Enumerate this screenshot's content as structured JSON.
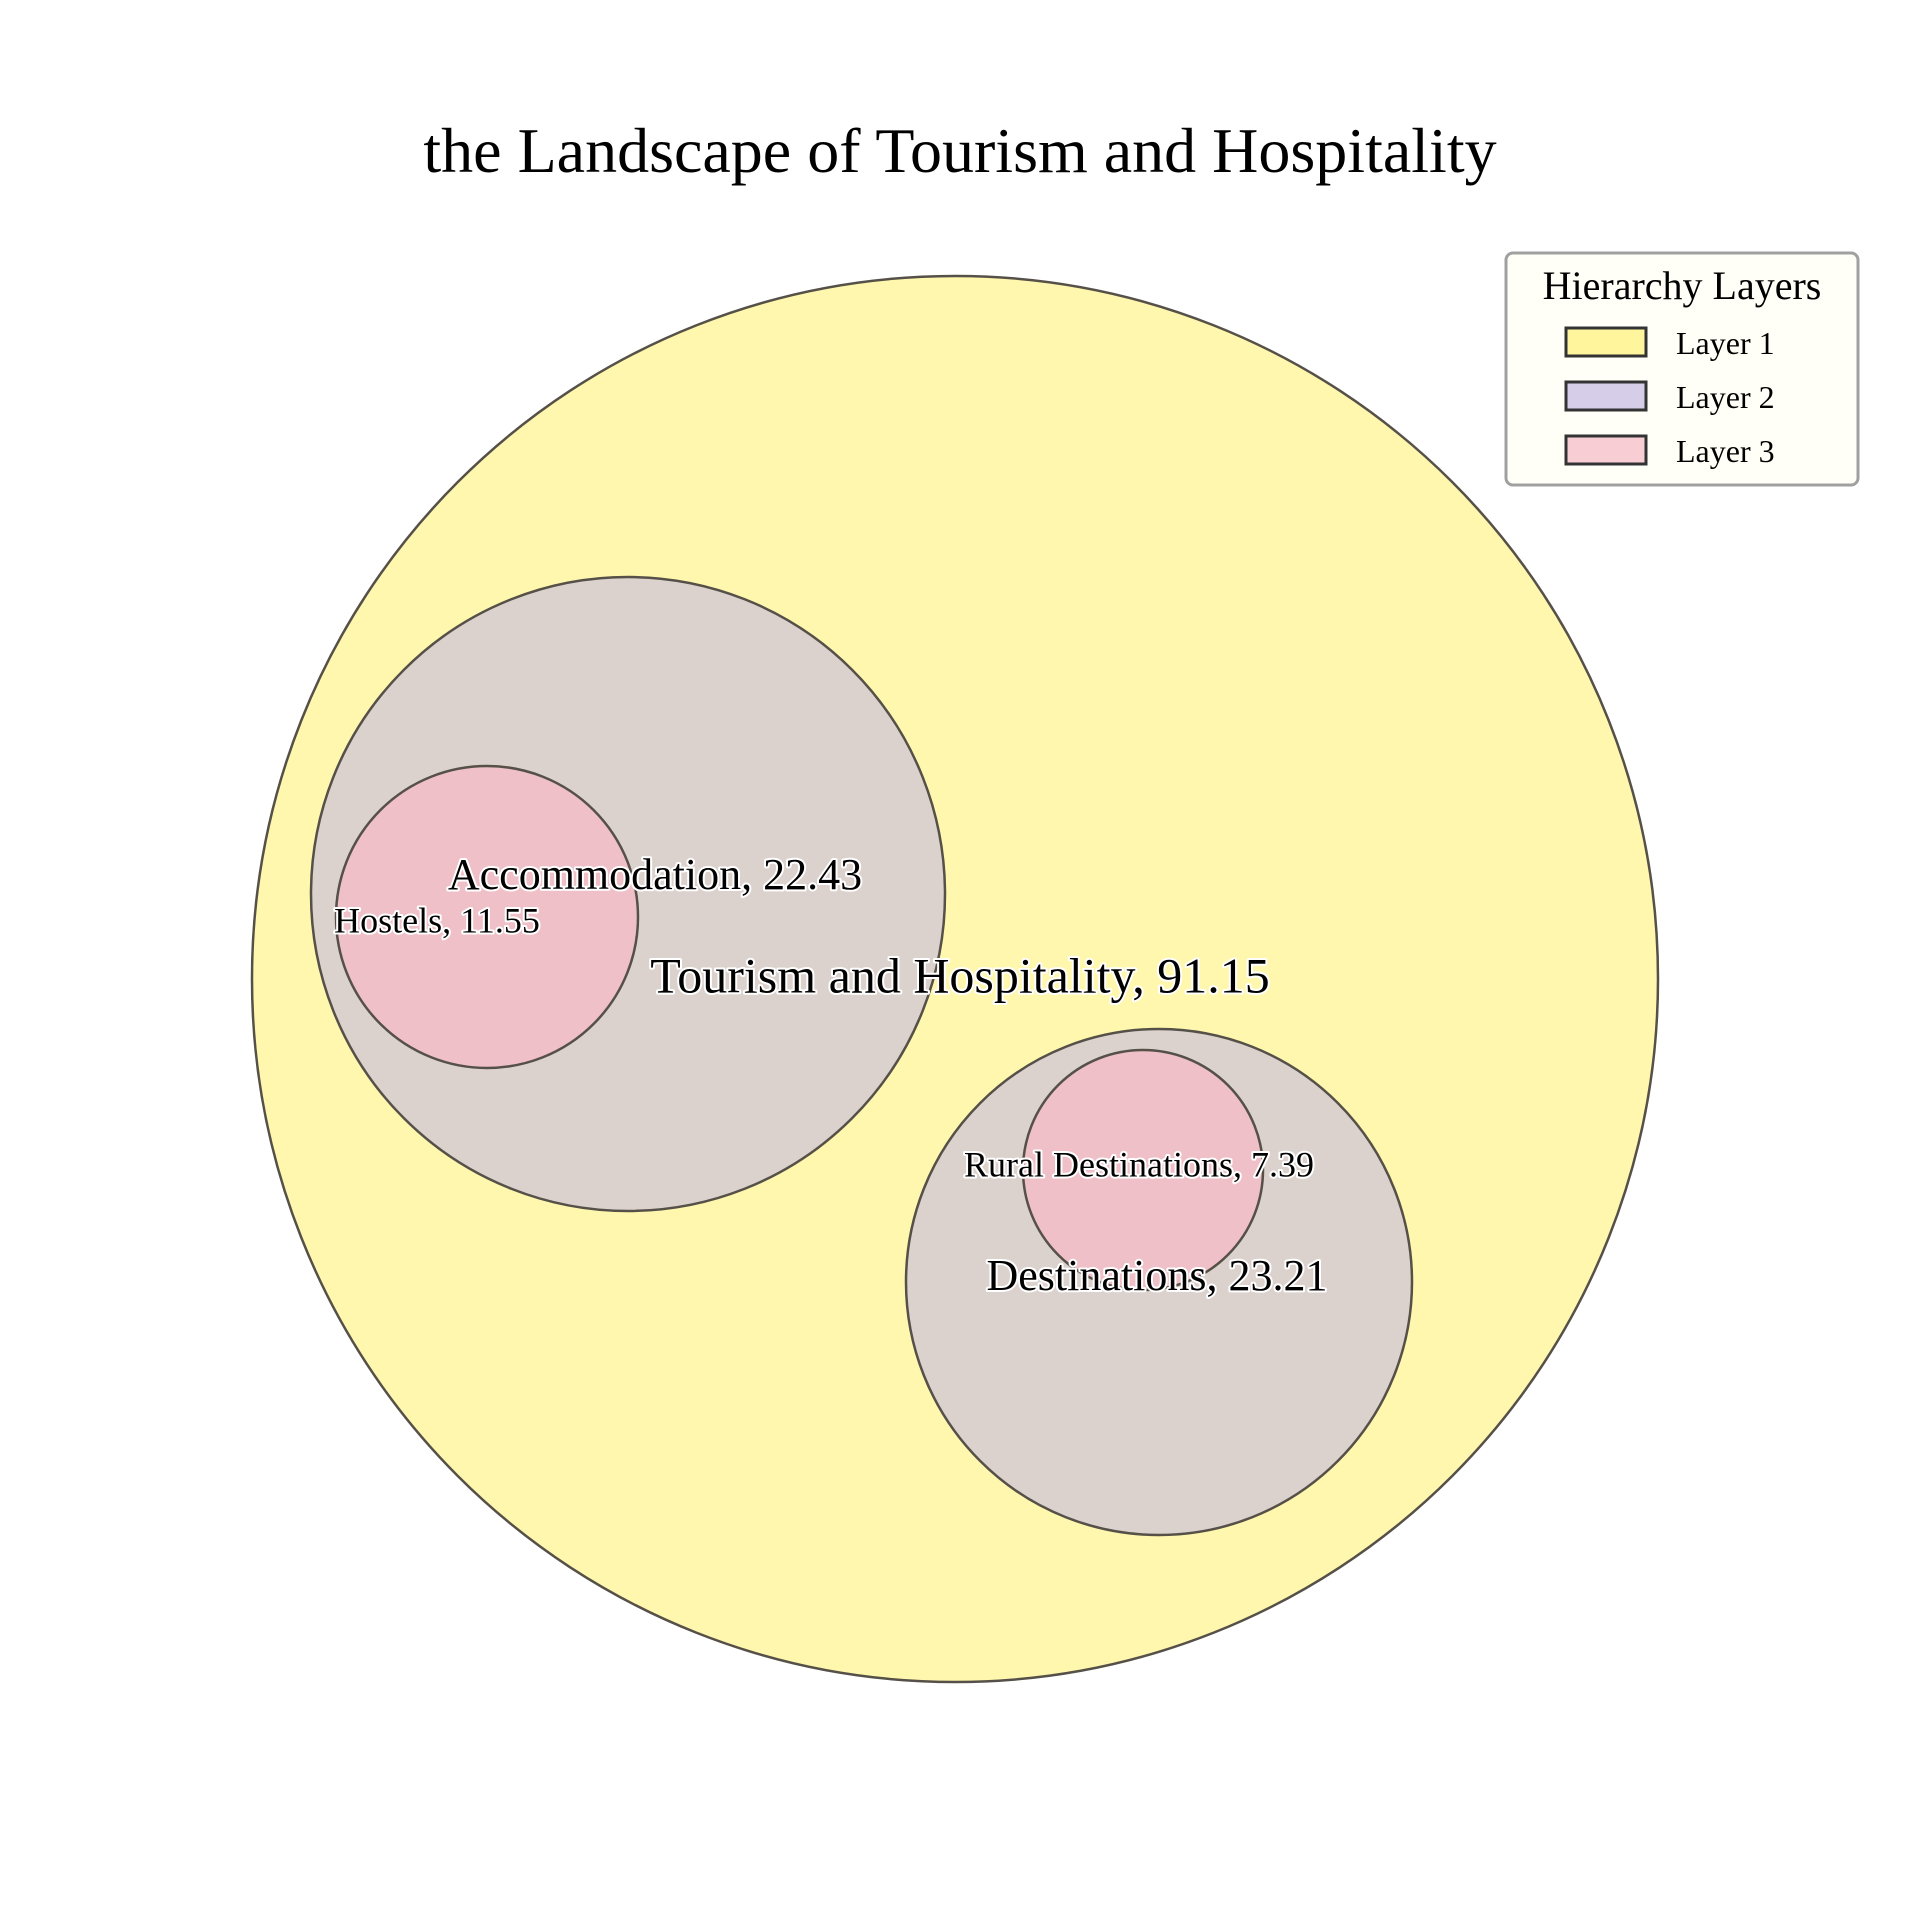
{
  "chart_data": {
    "type": "circle-packing",
    "title": "the Landscape of Tourism and Hospitality",
    "nodes": [
      {
        "name": "Tourism and Hospitality",
        "value": 91.15,
        "label": "Tourism and Hospitality, 91.15",
        "layer": 1
      },
      {
        "name": "Accommodation",
        "value": 22.43,
        "label": "Accommodation, 22.43",
        "layer": 2,
        "parent": "Tourism and Hospitality"
      },
      {
        "name": "Destinations",
        "value": 23.21,
        "label": "Destinations, 23.21",
        "layer": 2,
        "parent": "Tourism and Hospitality"
      },
      {
        "name": "Hostels",
        "value": 11.55,
        "label": "Hostels, 11.55",
        "layer": 3,
        "parent": "Accommodation"
      },
      {
        "name": "Rural Destinations",
        "value": 7.39,
        "label": "Rural Destinations, 7.39",
        "layer": 3,
        "parent": "Destinations"
      }
    ],
    "legend": {
      "title": "Hierarchy Layers",
      "placement": "top-right",
      "items": [
        {
          "label": "Layer 1",
          "color": "#fff176"
        },
        {
          "label": "Layer 2",
          "color": "#c5b9e3"
        },
        {
          "label": "Layer 3",
          "color": "#f6b8c4"
        }
      ]
    }
  }
}
